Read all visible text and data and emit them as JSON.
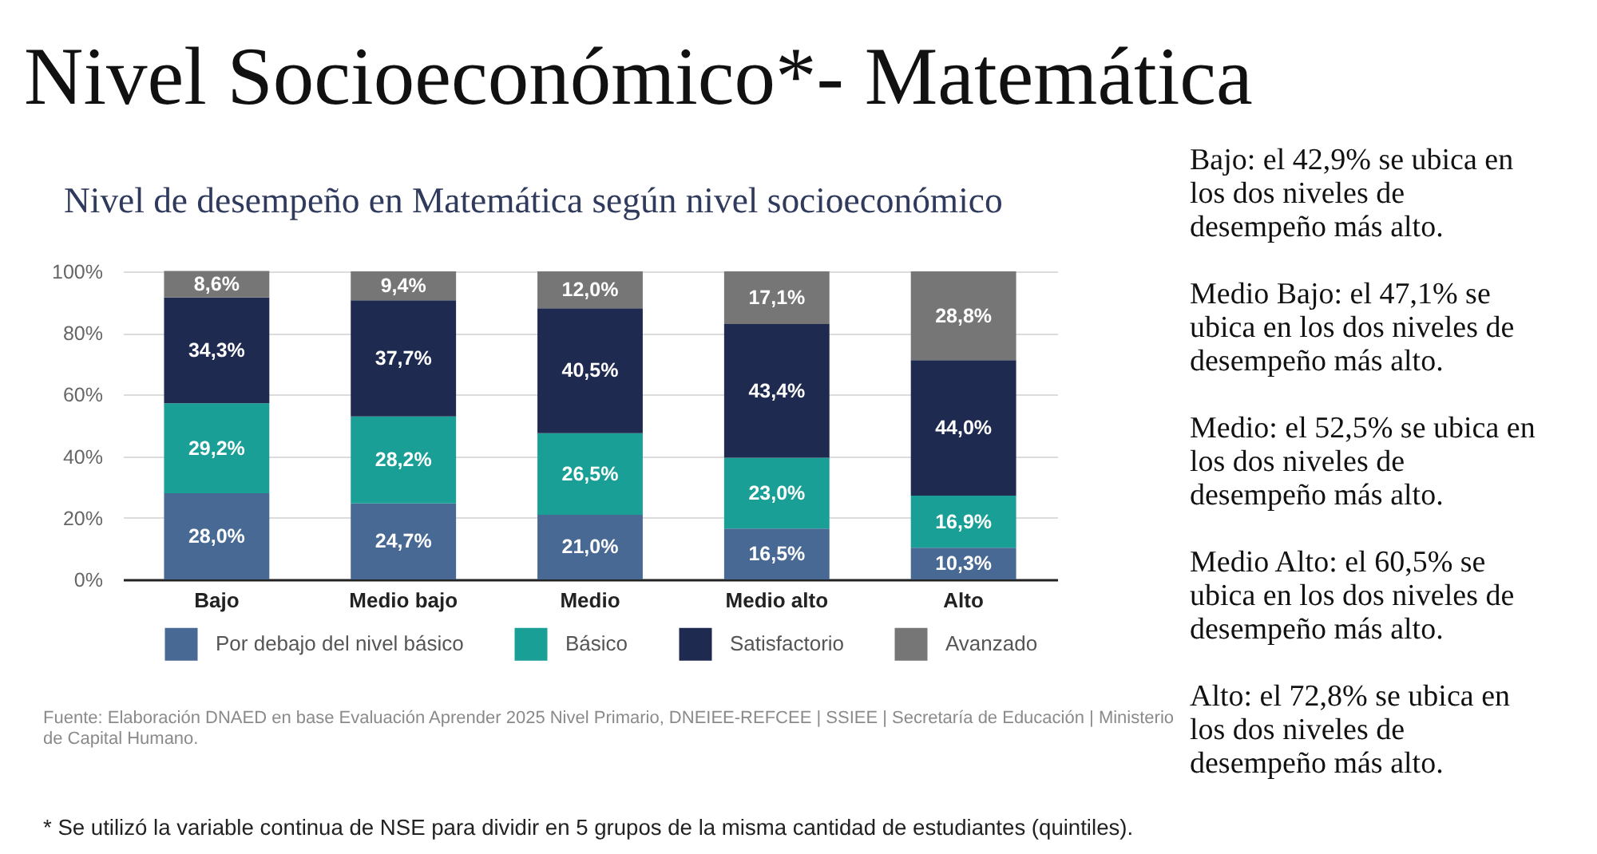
{
  "chart_data": {
    "type": "bar",
    "title": "Nivel Socioeconómico*- Matemática",
    "subtitle": "Nivel de desempeño en Matemática según nivel socioeconómico",
    "categories": [
      "Bajo",
      "Medio bajo",
      "Medio",
      "Medio alto",
      "Alto"
    ],
    "stacked": true,
    "series": [
      {
        "name": "Por debajo del nivel básico",
        "color": "#476994",
        "values": [
          28.0,
          24.7,
          21.0,
          16.5,
          10.3
        ],
        "value_labels": [
          "28,0%",
          "24,7%",
          "21,0%",
          "16,5%",
          "10,3%"
        ]
      },
      {
        "name": "Básico",
        "color": "#1a9f97",
        "values": [
          29.2,
          28.2,
          26.5,
          23.0,
          16.9
        ],
        "value_labels": [
          "29,2%",
          "28,2%",
          "26,5%",
          "23,0%",
          "16,9%"
        ]
      },
      {
        "name": "Satisfactorio",
        "color": "#1f2a50",
        "values": [
          34.3,
          37.7,
          40.5,
          43.4,
          44.0
        ],
        "value_labels": [
          "34,3%",
          "37,7%",
          "40,5%",
          "43,4%",
          "44,0%"
        ]
      },
      {
        "name": "Avanzado",
        "color": "#767676",
        "values": [
          8.6,
          9.4,
          12.0,
          17.1,
          28.8
        ],
        "value_labels": [
          "8,6%",
          "9,4%",
          "12,0%",
          "17,1%",
          "28,8%"
        ]
      }
    ],
    "ylim": [
      0,
      100
    ],
    "yticks": [
      {
        "value": 0,
        "label": "0%"
      },
      {
        "value": 20,
        "label": "20%"
      },
      {
        "value": 40,
        "label": "40%"
      },
      {
        "value": 60,
        "label": "60%"
      },
      {
        "value": 80,
        "label": "80%"
      },
      {
        "value": 100,
        "label": "100%"
      }
    ],
    "grid": "y",
    "legend": "bottom",
    "annotations": [
      "Bajo: el 42,9% se ubica en los dos niveles de desempeño más alto.",
      "Medio Bajo: el 47,1% se ubica en los dos niveles de desempeño más alto.",
      "Medio: el 52,5% se ubica en los dos niveles de desempeño más alto.",
      "Medio Alto: el 60,5% se ubica en los dos niveles de desempeño más alto.",
      "Alto: el 72,8% se ubica en los dos niveles de desempeño más alto.",
      "Fuente: Elaboración DNAED en base Evaluación Aprender 2025 Nivel Primario, DNEIEE-REFCEE | SSIEE | Secretaría de Educación | Ministerio de Capital Humano.",
      "* Se utilizó la variable continua de NSE para dividir en 5 grupos de la misma cantidad de estudiantes (quintiles)."
    ]
  }
}
